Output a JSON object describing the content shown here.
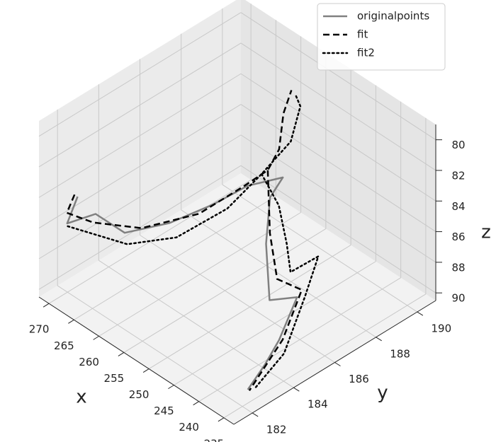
{
  "chart_data": {
    "type": "line3d",
    "xlabel": "x",
    "ylabel": "y",
    "zlabel": "z",
    "xlim": [
      233,
      272
    ],
    "ylim": [
      181.1,
      190.9
    ],
    "zlim": [
      90.5,
      79
    ],
    "xticks": [
      235,
      240,
      245,
      250,
      255,
      260,
      265,
      270
    ],
    "yticks": [
      182,
      184,
      186,
      188,
      190
    ],
    "zticks": [
      80,
      82,
      84,
      86,
      88,
      90
    ],
    "grid": true,
    "legend": "upper right",
    "series": [
      {
        "name": "originalpoints",
        "color": "#808080",
        "linestyle": "solid",
        "x": [
          233.5,
          234.6,
          235.9,
          238.5,
          240.7,
          245.1,
          247.2,
          246.7,
          248.8,
          250.4,
          252.9,
          256.9,
          261.5,
          267.6,
          268.4
        ],
        "y": [
          181.9,
          183.0,
          184.0,
          185.5,
          184.7,
          185.6,
          186.3,
          186.8,
          185.6,
          184.3,
          182.8,
          181.6,
          181.3,
          181.4,
          182.1
        ],
        "z": [
          89,
          88.5,
          88,
          87,
          87,
          85,
          83,
          82,
          82,
          82.5,
          83,
          83.5,
          83,
          85,
          84
        ]
      },
      {
        "name": "fit",
        "color": "#000000",
        "linestyle": "dashed",
        "x": [
          269.0,
          269.3,
          262.8,
          256.0,
          251.5,
          249.1,
          249.3,
          249.1,
          250.7,
          252.4,
          null,
          249.3,
          246.4,
          243.3,
          239.2,
          235.6,
          233.2
        ],
        "y": [
          182.1,
          181.8,
          181.5,
          182.2,
          183.9,
          185.5,
          186.7,
          187.2,
          187.8,
          188.6,
          null,
          186.7,
          186.1,
          185.7,
          185.9,
          184.1,
          181.9
        ],
        "z": [
          84,
          85,
          84,
          83.5,
          83,
          82,
          82,
          81,
          79.5,
          79,
          null,
          82,
          85,
          87,
          87,
          88,
          89
        ]
      },
      {
        "name": "fit2",
        "color": "#000000",
        "linestyle": "dotted",
        "x": [
          268.3,
          259.7,
          254.8,
          250.8,
          249.3,
          248.0,
          250.2,
          251.1,
          null,
          249.3,
          247.5,
          245.5,
          243.1,
          242.9,
          239.0,
          234.5,
          234.2
        ],
        "y": [
          181.6,
          182.4,
          183.6,
          185.1,
          186.4,
          187.5,
          188.5,
          188.5,
          null,
          186.4,
          186.8,
          186.7,
          186.3,
          187.6,
          186.0,
          183.9,
          182.4
        ],
        "z": [
          85.5,
          85.5,
          85,
          83.5,
          82,
          80.5,
          79.5,
          79,
          null,
          82,
          84,
          86,
          87,
          87,
          87.5,
          88.5,
          89.5
        ]
      }
    ]
  }
}
